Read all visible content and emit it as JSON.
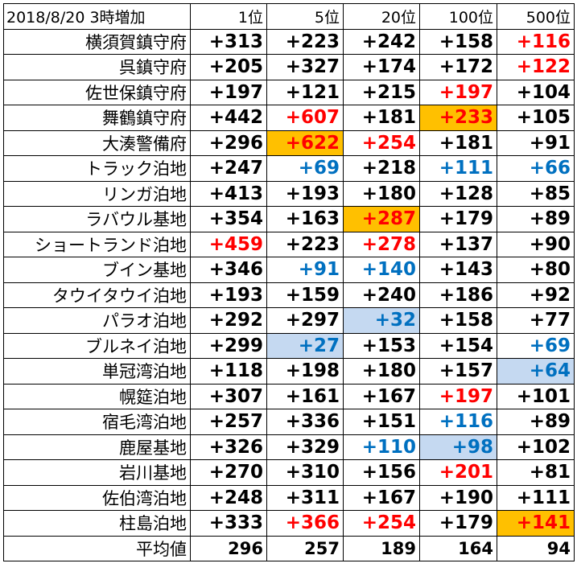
{
  "colors": {
    "red": "#ff0000",
    "blue": "#0070c0",
    "black": "#000000",
    "orange_highlight": "#ffc000",
    "blue_highlight": "#c5d9f1"
  },
  "table": {
    "corner_label": "2018/8/20 3時増加",
    "columns": [
      "1位",
      "5位",
      "20位",
      "100位",
      "500位"
    ],
    "rows": [
      {
        "name": "横須賀鎮守府",
        "cells": [
          {
            "v": "+313"
          },
          {
            "v": "+223"
          },
          {
            "v": "+242"
          },
          {
            "v": "+158"
          },
          {
            "v": "+116",
            "color": "red"
          }
        ]
      },
      {
        "name": "呉鎮守府",
        "cells": [
          {
            "v": "+205"
          },
          {
            "v": "+327"
          },
          {
            "v": "+174"
          },
          {
            "v": "+172"
          },
          {
            "v": "+122",
            "color": "red"
          }
        ]
      },
      {
        "name": "佐世保鎮守府",
        "cells": [
          {
            "v": "+197"
          },
          {
            "v": "+121"
          },
          {
            "v": "+215"
          },
          {
            "v": "+197",
            "color": "red"
          },
          {
            "v": "+104"
          }
        ]
      },
      {
        "name": "舞鶴鎮守府",
        "cells": [
          {
            "v": "+442"
          },
          {
            "v": "+607",
            "color": "red"
          },
          {
            "v": "+181"
          },
          {
            "v": "+233",
            "color": "red",
            "bg": "orange_highlight"
          },
          {
            "v": "+105"
          }
        ]
      },
      {
        "name": "大湊警備府",
        "cells": [
          {
            "v": "+296"
          },
          {
            "v": "+622",
            "color": "red",
            "bg": "orange_highlight"
          },
          {
            "v": "+254",
            "color": "red"
          },
          {
            "v": "+181"
          },
          {
            "v": "+91"
          }
        ]
      },
      {
        "name": "トラック泊地",
        "cells": [
          {
            "v": "+247"
          },
          {
            "v": "+69",
            "color": "blue"
          },
          {
            "v": "+218"
          },
          {
            "v": "+111",
            "color": "blue"
          },
          {
            "v": "+66",
            "color": "blue"
          }
        ]
      },
      {
        "name": "リンガ泊地",
        "cells": [
          {
            "v": "+413"
          },
          {
            "v": "+193"
          },
          {
            "v": "+180"
          },
          {
            "v": "+128"
          },
          {
            "v": "+85"
          }
        ]
      },
      {
        "name": "ラバウル基地",
        "cells": [
          {
            "v": "+354"
          },
          {
            "v": "+163"
          },
          {
            "v": "+287",
            "color": "red",
            "bg": "orange_highlight"
          },
          {
            "v": "+179"
          },
          {
            "v": "+89"
          }
        ]
      },
      {
        "name": "ショートランド泊地",
        "cells": [
          {
            "v": "+459",
            "color": "red"
          },
          {
            "v": "+223"
          },
          {
            "v": "+278",
            "color": "red"
          },
          {
            "v": "+137"
          },
          {
            "v": "+90"
          }
        ]
      },
      {
        "name": "ブイン基地",
        "cells": [
          {
            "v": "+346"
          },
          {
            "v": "+91",
            "color": "blue"
          },
          {
            "v": "+140",
            "color": "blue"
          },
          {
            "v": "+143"
          },
          {
            "v": "+80"
          }
        ]
      },
      {
        "name": "タウイタウイ泊地",
        "cells": [
          {
            "v": "+193"
          },
          {
            "v": "+159"
          },
          {
            "v": "+240"
          },
          {
            "v": "+186"
          },
          {
            "v": "+92"
          }
        ]
      },
      {
        "name": "パラオ泊地",
        "cells": [
          {
            "v": "+292"
          },
          {
            "v": "+297"
          },
          {
            "v": "+32",
            "color": "blue",
            "bg": "blue_highlight"
          },
          {
            "v": "+158"
          },
          {
            "v": "+77"
          }
        ]
      },
      {
        "name": "ブルネイ泊地",
        "cells": [
          {
            "v": "+299"
          },
          {
            "v": "+27",
            "color": "blue",
            "bg": "blue_highlight"
          },
          {
            "v": "+153"
          },
          {
            "v": "+154"
          },
          {
            "v": "+69",
            "color": "blue"
          }
        ]
      },
      {
        "name": "単冠湾泊地",
        "cells": [
          {
            "v": "+118"
          },
          {
            "v": "+198"
          },
          {
            "v": "+180"
          },
          {
            "v": "+157"
          },
          {
            "v": "+64",
            "color": "blue",
            "bg": "blue_highlight"
          }
        ]
      },
      {
        "name": "幌筵泊地",
        "cells": [
          {
            "v": "+307"
          },
          {
            "v": "+161"
          },
          {
            "v": "+167"
          },
          {
            "v": "+197",
            "color": "red"
          },
          {
            "v": "+101"
          }
        ]
      },
      {
        "name": "宿毛湾泊地",
        "cells": [
          {
            "v": "+257"
          },
          {
            "v": "+336"
          },
          {
            "v": "+151"
          },
          {
            "v": "+116",
            "color": "blue"
          },
          {
            "v": "+89"
          }
        ]
      },
      {
        "name": "鹿屋基地",
        "cells": [
          {
            "v": "+326"
          },
          {
            "v": "+329"
          },
          {
            "v": "+110",
            "color": "blue"
          },
          {
            "v": "+98",
            "color": "blue",
            "bg": "blue_highlight"
          },
          {
            "v": "+102"
          }
        ]
      },
      {
        "name": "岩川基地",
        "cells": [
          {
            "v": "+270"
          },
          {
            "v": "+310"
          },
          {
            "v": "+156"
          },
          {
            "v": "+201",
            "color": "red"
          },
          {
            "v": "+81"
          }
        ]
      },
      {
        "name": "佐伯湾泊地",
        "cells": [
          {
            "v": "+248"
          },
          {
            "v": "+311"
          },
          {
            "v": "+167"
          },
          {
            "v": "+190"
          },
          {
            "v": "+111"
          }
        ]
      },
      {
        "name": "柱島泊地",
        "cells": [
          {
            "v": "+333"
          },
          {
            "v": "+366",
            "color": "red"
          },
          {
            "v": "+254",
            "color": "red"
          },
          {
            "v": "+179"
          },
          {
            "v": "+141",
            "color": "red",
            "bg": "orange_highlight"
          }
        ]
      }
    ],
    "average": {
      "label": "平均値",
      "values": [
        "296",
        "257",
        "189",
        "164",
        "94"
      ]
    }
  }
}
